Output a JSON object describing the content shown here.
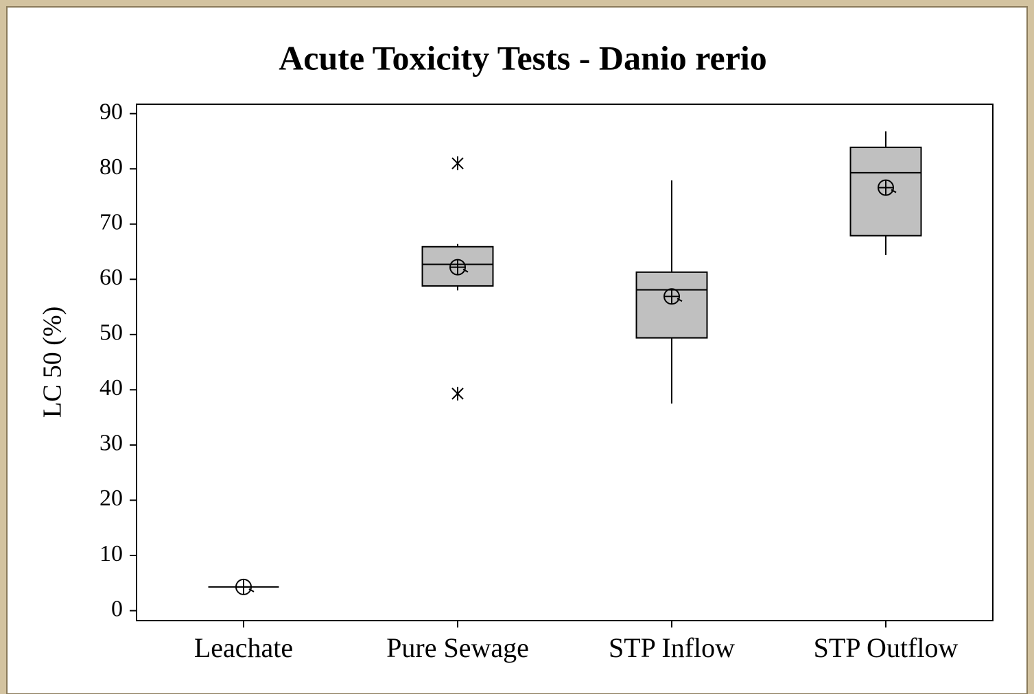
{
  "chart_data": {
    "type": "box",
    "title": "Acute Toxicity Tests - Danio rerio",
    "y_label": "LC 50 (%)",
    "categories": [
      "Leachate",
      "Pure Sewage",
      "STP Inflow",
      "STP Outflow"
    ],
    "boxes": [
      {
        "min": 4.3,
        "q1": 4.3,
        "median": 4.3,
        "q3": 4.3,
        "max": 4.3,
        "mean": 4.3,
        "outliers": []
      },
      {
        "min": 58.0,
        "q1": 58.8,
        "median": 62.7,
        "q3": 65.9,
        "max": 66.4,
        "mean": 62.2,
        "outliers": [
          81.0,
          39.3
        ]
      },
      {
        "min": 37.5,
        "q1": 49.4,
        "median": 58.1,
        "q3": 61.3,
        "max": 77.9,
        "mean": 56.9,
        "outliers": []
      },
      {
        "min": 64.4,
        "q1": 67.9,
        "median": 79.3,
        "q3": 83.9,
        "max": 86.8,
        "mean": 76.6,
        "outliers": []
      }
    ],
    "color": "#c0c0c0",
    "ylim": [
      -1.8,
      91.7
    ],
    "yticks": [
      0,
      10,
      20,
      30,
      40,
      50,
      60,
      70,
      80,
      90
    ]
  }
}
